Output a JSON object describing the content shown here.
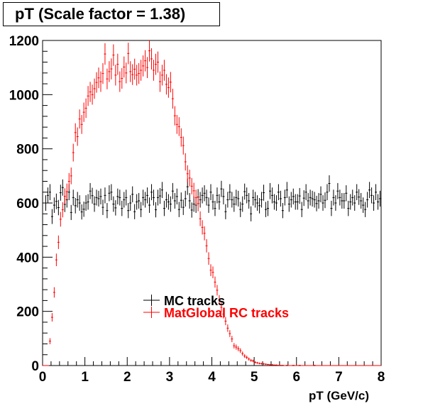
{
  "chart_data": {
    "type": "scatter",
    "title": "pT (Scale factor = 1.38)",
    "xlabel": "pT (GeV/c)",
    "ylabel": "",
    "xlim": [
      0,
      8
    ],
    "ylim": [
      0,
      1200
    ],
    "x_ticks": [
      "0",
      "1",
      "2",
      "3",
      "4",
      "5",
      "6",
      "7",
      "8"
    ],
    "y_ticks": [
      "0",
      "200",
      "400",
      "600",
      "800",
      "1000",
      "1200"
    ],
    "grid": false,
    "legend_position": "center",
    "bin_width": 0.05,
    "series": [
      {
        "name": "MC tracks",
        "color": "#000000",
        "marker": "error-bar",
        "values": [
          0,
          600,
          628,
          640,
          550,
          592,
          606,
          583,
          638,
          657,
          595,
          612,
          640,
          565,
          620,
          590,
          612,
          600,
          567,
          577,
          600,
          604,
          644,
          627,
          596,
          620,
          616,
          624,
          584,
          628,
          572,
          636,
          640,
          596,
          582,
          624,
          620,
          580,
          612,
          620,
          572,
          600,
          632,
          568,
          604,
          608,
          576,
          620,
          612,
          628,
          592,
          640,
          620,
          575,
          620,
          626,
          648,
          580,
          612,
          604,
          596,
          644,
          608,
          624,
          576,
          610,
          584,
          616,
          660,
          608,
          574,
          596,
          592,
          622,
          612,
          628,
          636,
          620,
          592,
          640,
          604,
          580,
          628,
          604,
          652,
          624,
          568,
          612,
          640,
          612,
          596,
          620,
          616,
          576,
          596,
          642,
          628,
          608,
          560,
          620,
          612,
          600,
          590,
          612,
          638,
          576,
          580,
          644,
          628,
          604,
          600,
          640,
          616,
          572,
          620,
          648,
          596,
          612,
          624,
          604,
          604,
          626,
          576,
          618,
          640,
          608,
          620,
          616,
          612,
          598,
          608,
          632,
          600,
          610,
          640,
          672,
          580,
          620,
          600,
          644,
          620,
          608,
          608,
          636,
          580,
          604,
          620,
          600,
          640,
          622,
          608,
          592,
          576,
          612,
          648,
          628,
          600,
          640,
          604,
          616,
          636,
          592
        ]
      },
      {
        "name": "MatGlobal RC tracks",
        "color": "#ff0000",
        "marker": "error-bar",
        "values": [
          0,
          0,
          0,
          90,
          178,
          270,
          390,
          455,
          540,
          575,
          625,
          642,
          680,
          700,
          786,
          860,
          845,
          910,
          890,
          935,
          950,
          995,
          1010,
          1000,
          1022,
          1045,
          1062,
          1048,
          1078,
          1150,
          1058,
          1085,
          1095,
          1146,
          1072,
          1112,
          1048,
          1060,
          1102,
          1080,
          1152,
          1085,
          1074,
          1094,
          1072,
          1078,
          1090,
          1106,
          1125,
          1100,
          1162,
          1132,
          1090,
          1112,
          1120,
          1048,
          1072,
          1090,
          1038,
          1026,
          1046,
          985,
          922,
          890,
          882,
          842,
          812,
          752,
          708,
          692,
          662,
          645,
          620,
          598,
          542,
          510,
          488,
          442,
          395,
          352,
          344,
          308,
          278,
          242,
          215,
          190,
          164,
          138,
          118,
          98,
          73,
          68,
          62,
          55,
          44,
          35,
          30,
          24,
          19,
          17,
          12,
          10,
          8,
          7,
          6,
          5,
          4,
          3,
          3,
          2,
          2,
          1,
          1,
          1,
          0,
          1,
          0,
          0,
          1,
          0,
          0,
          1,
          0,
          0,
          0,
          0,
          0,
          0,
          1,
          0,
          0,
          0,
          0,
          0,
          0,
          0,
          0,
          0,
          0,
          0,
          0,
          0,
          0,
          0,
          0,
          0,
          0,
          0,
          0,
          0,
          0,
          0,
          0,
          0,
          0,
          0,
          0,
          0,
          0,
          0,
          0,
          0,
          0
        ]
      }
    ]
  }
}
